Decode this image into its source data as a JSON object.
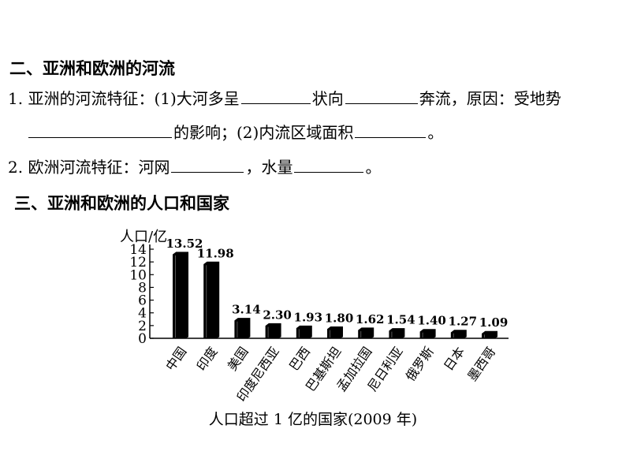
{
  "section2": {
    "heading": "二、亚洲和欧洲的河流",
    "q1_line1_a": "1. 亚洲的河流特征：(1)大河多呈",
    "q1_line1_b": "状向",
    "q1_line1_c": "奔流，原因：受地势",
    "q1_line2_a": "的影响；(2)内流区域面积",
    "q1_line2_b": "。",
    "q2_a": "2. 欧洲河流特征：河网",
    "q2_b": "，水量",
    "q2_c": "。"
  },
  "section3": {
    "heading": "三、亚洲和欧洲的人口和国家"
  },
  "chart_data": {
    "type": "bar",
    "title": "人口超过 1 亿的国家(2009 年)",
    "ylabel": "人口/亿",
    "xlabel": "",
    "ylim": [
      0,
      14
    ],
    "yticks": [
      0,
      2,
      4,
      6,
      8,
      10,
      12,
      14
    ],
    "categories": [
      "中国",
      "印度",
      "美国",
      "印度尼西亚",
      "巴西",
      "巴基斯坦",
      "孟加拉国",
      "尼日利亚",
      "俄罗斯",
      "日本",
      "墨西哥"
    ],
    "values": [
      13.52,
      11.98,
      3.14,
      2.3,
      1.93,
      1.8,
      1.62,
      1.54,
      1.4,
      1.27,
      1.09
    ],
    "value_labels": [
      "13.52",
      "11.98",
      "3.14",
      "2.30",
      "1.93",
      "1.80",
      "1.62",
      "1.54",
      "1.40",
      "1.27",
      "1.09"
    ],
    "bar_color": "#000000",
    "grid": false
  }
}
